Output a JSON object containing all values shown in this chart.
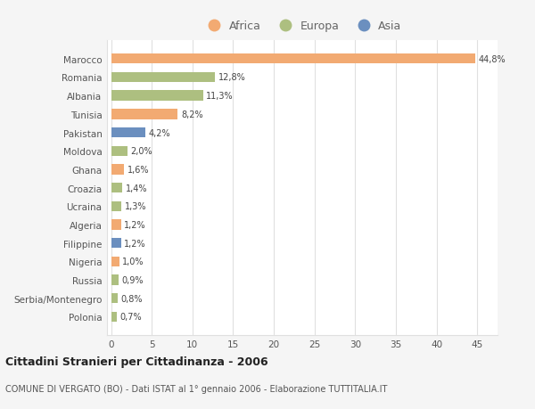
{
  "countries": [
    "Polonia",
    "Serbia/Montenegro",
    "Russia",
    "Nigeria",
    "Filippine",
    "Algeria",
    "Ucraina",
    "Croazia",
    "Ghana",
    "Moldova",
    "Pakistan",
    "Tunisia",
    "Albania",
    "Romania",
    "Marocco"
  ],
  "values": [
    0.7,
    0.8,
    0.9,
    1.0,
    1.2,
    1.2,
    1.3,
    1.4,
    1.6,
    2.0,
    4.2,
    8.2,
    11.3,
    12.8,
    44.8
  ],
  "labels": [
    "0,7%",
    "0,8%",
    "0,9%",
    "1,0%",
    "1,2%",
    "1,2%",
    "1,3%",
    "1,4%",
    "1,6%",
    "2,0%",
    "4,2%",
    "8,2%",
    "11,3%",
    "12,8%",
    "44,8%"
  ],
  "continents": [
    "Europa",
    "Europa",
    "Europa",
    "Africa",
    "Asia",
    "Africa",
    "Europa",
    "Europa",
    "Africa",
    "Europa",
    "Asia",
    "Africa",
    "Europa",
    "Europa",
    "Africa"
  ],
  "colors": {
    "Africa": "#F2AA72",
    "Europa": "#ADBF80",
    "Asia": "#6B8FBF"
  },
  "legend_labels": [
    "Africa",
    "Europa",
    "Asia"
  ],
  "legend_colors": [
    "#F2AA72",
    "#ADBF80",
    "#6B8FBF"
  ],
  "title1": "Cittadini Stranieri per Cittadinanza - 2006",
  "title2": "COMUNE DI VERGATO (BO) - Dati ISTAT al 1° gennaio 2006 - Elaborazione TUTTITALIA.IT",
  "xlim": [
    -0.5,
    47.5
  ],
  "xticks": [
    0,
    5,
    10,
    15,
    20,
    25,
    30,
    35,
    40,
    45
  ],
  "background_color": "#f5f5f5",
  "bar_background": "#ffffff",
  "grid_color": "#e0e0e0"
}
